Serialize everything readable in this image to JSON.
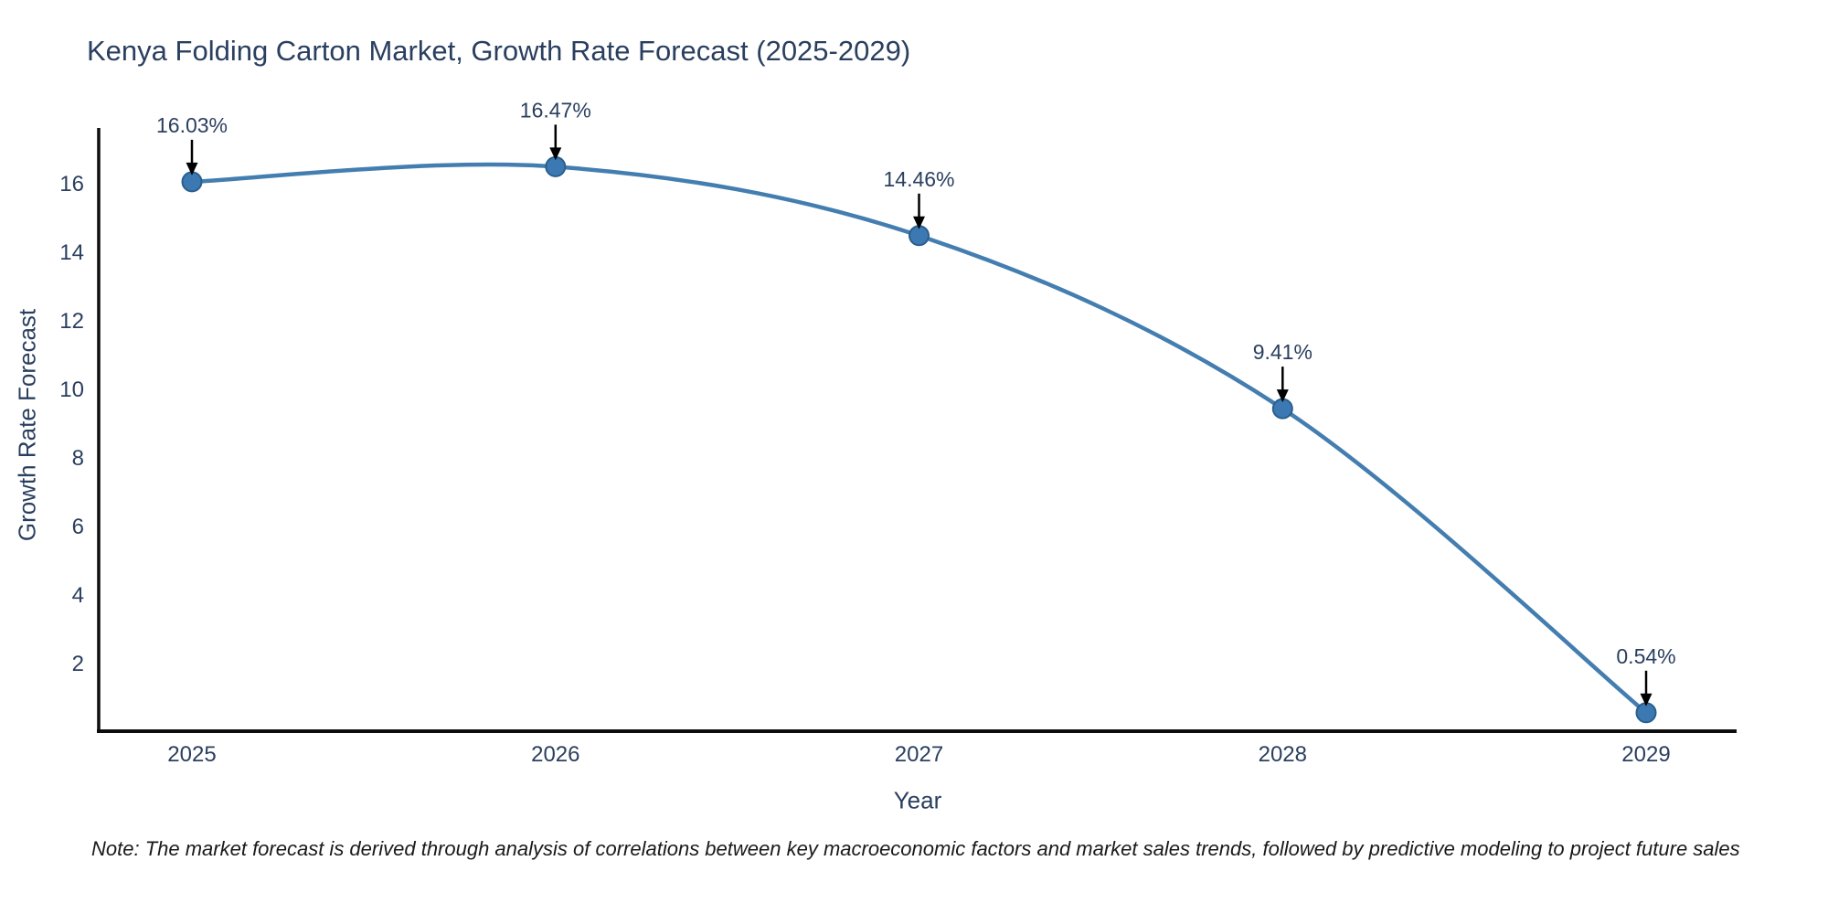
{
  "page": {
    "background": "#ffffff"
  },
  "chart_data": {
    "type": "line",
    "title": "Kenya Folding Carton Market, Growth Rate Forecast (2025-2029)",
    "xlabel": "Year",
    "ylabel": "Growth Rate Forecast",
    "x": [
      2025,
      2026,
      2027,
      2028,
      2029
    ],
    "y": [
      16.03,
      16.47,
      14.46,
      9.41,
      0.54
    ],
    "point_labels": [
      "16.03%",
      "16.47%",
      "14.46%",
      "9.41%",
      "0.54%"
    ],
    "x_ticks": [
      "2025",
      "2026",
      "2027",
      "2028",
      "2029"
    ],
    "y_ticks": [
      2,
      4,
      6,
      8,
      10,
      12,
      14,
      16
    ],
    "ylim": [
      0,
      17.6
    ],
    "grid": false,
    "legend": "none",
    "line_shape": "spline",
    "colors": {
      "line": "#447eb0",
      "marker": "#3c79b3",
      "marker_edge": "#2a5e8c",
      "axis": "#0d0d0d",
      "text": "#2a3f5f",
      "annotation_arrow": "#000000"
    }
  },
  "note": {
    "text": "Note: The market forecast is derived through analysis of correlations between key macroeconomic factors and market sales trends, followed by predictive modeling to project future sales"
  }
}
